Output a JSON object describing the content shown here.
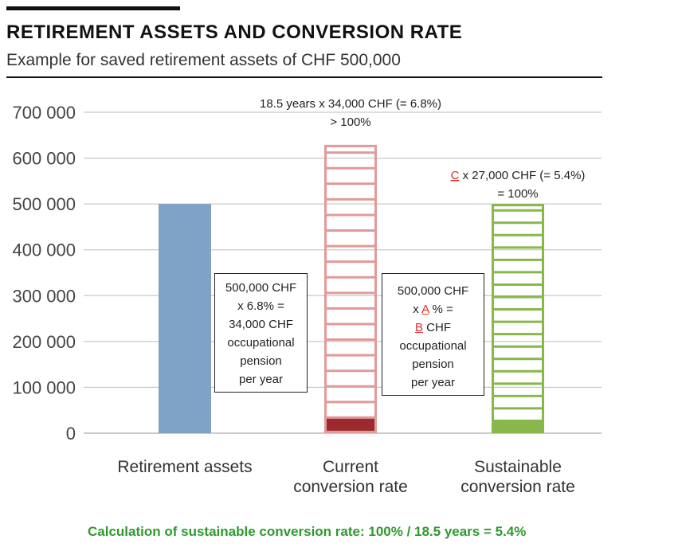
{
  "header": {
    "title": "RETIREMENT ASSETS AND CONVERSION RATE",
    "subtitle": "Example for saved retirement assets of CHF 500,000"
  },
  "chart_data": {
    "type": "bar",
    "title": "RETIREMENT ASSETS AND CONVERSION RATE",
    "subtitle": "Example for saved retirement assets of CHF 500,000",
    "xlabel": "",
    "ylabel": "",
    "ylim": [
      0,
      700000
    ],
    "yticks": [
      0,
      100000,
      200000,
      300000,
      400000,
      500000,
      600000,
      700000
    ],
    "ytick_labels": [
      "0",
      "100 000",
      "200 000",
      "300 000",
      "400 000",
      "500 000",
      "600 000",
      "700 000"
    ],
    "grid": true,
    "categories": [
      "Retirement assets",
      "Current\nconversion rate",
      "Sustainable\nconversion rate"
    ],
    "category_lines": [
      [
        "Retirement assets"
      ],
      [
        "Current",
        "conversion rate"
      ],
      [
        "Sustainable",
        "conversion rate"
      ]
    ],
    "bars": [
      {
        "category": "Retirement assets",
        "value": 500000,
        "style": "solid",
        "color": "#7ea3c7"
      },
      {
        "category": "Current\nconversion rate",
        "value": 629000,
        "style": "ladder",
        "color": "#e29a9a",
        "step": 34000,
        "fill_value": 34000,
        "fill_color": "#9b2a2f"
      },
      {
        "category": "Sustainable\nconversion rate",
        "value": 500000,
        "style": "ladder",
        "color": "#88b84a",
        "step": 27000,
        "fill_value": 27000,
        "fill_color": "#88b84a"
      }
    ],
    "annotations": {
      "current_line1": "18.5 years x 34,000 CHF  (= 6.8%)",
      "current_line2": "> 100%",
      "sustainable_red": "C",
      "sustainable_line1_rest": " x 27,000 CHF (= 5.4%)",
      "sustainable_line2": "= 100%"
    },
    "boxes": {
      "current": {
        "line1": "500,000 CHF",
        "line2": "x 6.8% =",
        "line3": "34,000 CHF",
        "line4": "occupational",
        "line5": "pension",
        "line6": "per year"
      },
      "sustainable": {
        "line1": "500,000 CHF",
        "line2_pre": "x ",
        "line2_red": "A",
        "line2_post": " % =",
        "line3_red": "B",
        "line3_post": " CHF",
        "line4": "occupational",
        "line5": "pension",
        "line6": "per year"
      }
    },
    "footer": "Calculation of sustainable conversion rate: 100% / 18.5 years = 5.4%"
  }
}
